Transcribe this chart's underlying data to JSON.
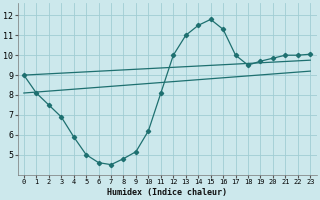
{
  "xlabel": "Humidex (Indice chaleur)",
  "bg_color": "#cce8ec",
  "grid_color": "#a0cdd4",
  "line_color": "#1e7070",
  "xlim": [
    -0.5,
    23.5
  ],
  "ylim": [
    4.0,
    12.6
  ],
  "yticks": [
    5,
    6,
    7,
    8,
    9,
    10,
    11,
    12
  ],
  "xticks": [
    0,
    1,
    2,
    3,
    4,
    5,
    6,
    7,
    8,
    9,
    10,
    11,
    12,
    13,
    14,
    15,
    16,
    17,
    18,
    19,
    20,
    21,
    22,
    23
  ],
  "series1_x": [
    0,
    1,
    2,
    3,
    4,
    5,
    6,
    7,
    8,
    9,
    10,
    11,
    12,
    13,
    14,
    15,
    16,
    17,
    18,
    19,
    20,
    21,
    22,
    23
  ],
  "series1_y": [
    9.0,
    8.1,
    7.5,
    6.9,
    5.9,
    5.0,
    4.6,
    4.5,
    4.8,
    5.15,
    6.2,
    8.1,
    10.0,
    11.0,
    11.5,
    11.8,
    11.3,
    10.0,
    9.5,
    9.7,
    9.85,
    10.0,
    10.0,
    10.05
  ],
  "series2_x": [
    0,
    23
  ],
  "series2_y": [
    8.1,
    9.2
  ],
  "series3_x": [
    0,
    23
  ],
  "series3_y": [
    9.0,
    9.75
  ]
}
